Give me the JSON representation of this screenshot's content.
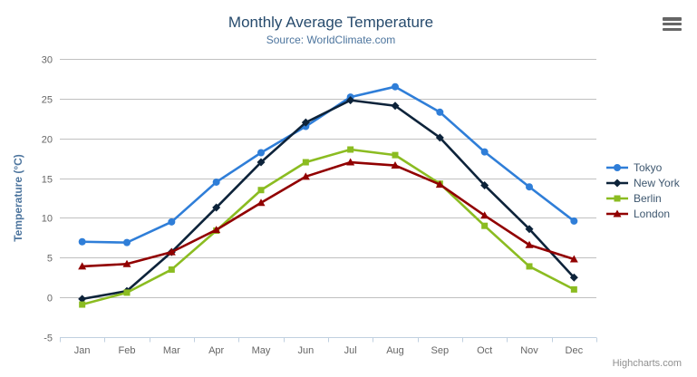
{
  "credits": "Highcharts.com",
  "chart_data": {
    "type": "line",
    "title": "Monthly Average Temperature",
    "subtitle": "Source: WorldClimate.com",
    "categories": [
      "Jan",
      "Feb",
      "Mar",
      "Apr",
      "May",
      "Jun",
      "Jul",
      "Aug",
      "Sep",
      "Oct",
      "Nov",
      "Dec"
    ],
    "xlabel": "",
    "ylabel": "Temperature (°C)",
    "ylim": [
      -5,
      30
    ],
    "yticks": [
      -5,
      0,
      5,
      10,
      15,
      20,
      25,
      30
    ],
    "grid": true,
    "legend_position": "right",
    "series": [
      {
        "name": "Tokyo",
        "color": "#2f7ed8",
        "marker": "circle",
        "values": [
          7.0,
          6.9,
          9.5,
          14.5,
          18.2,
          21.5,
          25.2,
          26.5,
          23.3,
          18.3,
          13.9,
          9.6
        ]
      },
      {
        "name": "New York",
        "color": "#0d233a",
        "marker": "diamond",
        "values": [
          -0.2,
          0.8,
          5.7,
          11.3,
          17.0,
          22.0,
          24.8,
          24.1,
          20.1,
          14.1,
          8.6,
          2.5
        ]
      },
      {
        "name": "Berlin",
        "color": "#8bbc21",
        "marker": "square",
        "values": [
          -0.9,
          0.6,
          3.5,
          8.4,
          13.5,
          17.0,
          18.6,
          17.9,
          14.3,
          9.0,
          3.9,
          1.0
        ]
      },
      {
        "name": "London",
        "color": "#910000",
        "marker": "triangle",
        "values": [
          3.9,
          4.2,
          5.7,
          8.5,
          11.9,
          15.2,
          17.0,
          16.6,
          14.2,
          10.3,
          6.6,
          4.8
        ]
      }
    ],
    "colors": {
      "grid_line": "#c0c0c0",
      "axis_line": "#c0d0e0",
      "axis_label": "#666666",
      "axis_title": "#4d759e",
      "title": "#274b6d",
      "subtitle": "#4d759e",
      "legend_text": "#3e576f",
      "credits": "#909090",
      "context_button": "#666666"
    }
  }
}
